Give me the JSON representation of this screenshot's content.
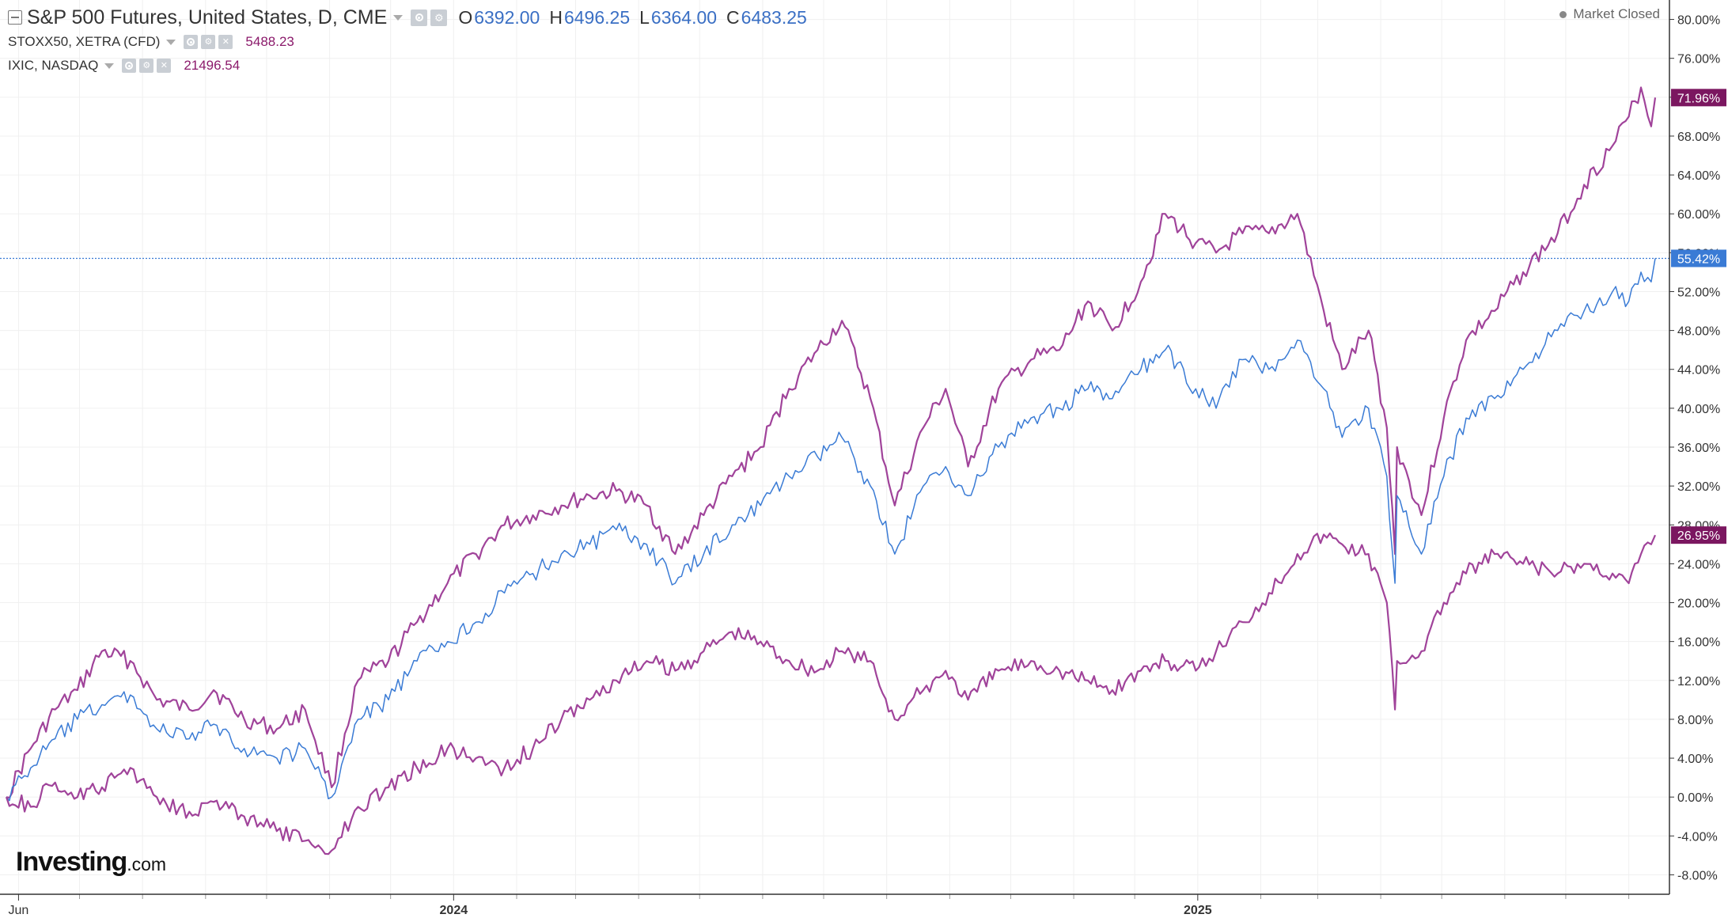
{
  "header": {
    "main_series": {
      "title": "S&P 500 Futures, United States, D, CME",
      "ohlc": [
        {
          "label": "O",
          "value": "6392.00"
        },
        {
          "label": "H",
          "value": "6496.25"
        },
        {
          "label": "L",
          "value": "6364.00"
        },
        {
          "label": "C",
          "value": "6483.25"
        }
      ]
    },
    "compare_series": [
      {
        "title": "STOXX50, XETRA (CFD)",
        "value": "5488.23"
      },
      {
        "title": "IXIC, NASDAQ",
        "value": "21496.54"
      }
    ],
    "market_status": "Market Closed",
    "icons": [
      "collapse-icon",
      "dropdown-arrow-icon",
      "eye-icon",
      "gear-icon",
      "close-icon"
    ]
  },
  "brand": {
    "name": "Investing",
    "suffix": ".com"
  },
  "colors": {
    "sp500": "#3a7bd5",
    "compare": "#a0439a",
    "compare_label_bg": "#7b1760",
    "sp500_label_bg": "#3a7bd5",
    "grid": "#f0f0f0",
    "axis": "#333333"
  },
  "chart_data": {
    "type": "line",
    "title": "S&P 500 Futures, United States, D, CME",
    "x_range": [
      "2023-05-26",
      "2025-08-14"
    ],
    "x_ticks": [
      {
        "date": "2023-06-01",
        "label": "Jun"
      },
      {
        "date": "2024-01-01",
        "label": "2024"
      },
      {
        "date": "2025-01-01",
        "label": "2025"
      }
    ],
    "x_minor_ticks": [
      "2023-07-01",
      "2023-08-01",
      "2023-09-01",
      "2023-10-01",
      "2023-11-01",
      "2023-12-01",
      "2024-02-01",
      "2024-03-01",
      "2024-04-01",
      "2024-05-01",
      "2024-06-01",
      "2024-07-01",
      "2024-08-01",
      "2024-09-01",
      "2024-10-01",
      "2024-11-01",
      "2024-12-01",
      "2025-02-01",
      "2025-03-01",
      "2025-04-01",
      "2025-05-01",
      "2025-06-01",
      "2025-07-01",
      "2025-08-01"
    ],
    "y_range": [
      -10,
      82
    ],
    "y_ticks": [
      "-8.00%",
      "-4.00%",
      "0.00%",
      "4.00%",
      "8.00%",
      "12.00%",
      "16.00%",
      "20.00%",
      "24.00%",
      "28.00%",
      "32.00%",
      "36.00%",
      "40.00%",
      "44.00%",
      "48.00%",
      "52.00%",
      "56.00%",
      "60.00%",
      "64.00%",
      "68.00%",
      "72.00%",
      "76.00%",
      "80.00%"
    ],
    "y_tick_values": [
      -8,
      -4,
      0,
      4,
      8,
      12,
      16,
      20,
      24,
      28,
      32,
      36,
      40,
      44,
      48,
      52,
      56,
      60,
      64,
      68,
      72,
      76,
      80
    ],
    "grid": true,
    "series": [
      {
        "name": "IXIC, NASDAQ",
        "color": "#a0439a",
        "last_label": "71.96%",
        "last_value": 71.96,
        "points": [
          [
            "2023-05-26",
            0
          ],
          [
            "2023-06-07",
            5
          ],
          [
            "2023-06-19",
            9
          ],
          [
            "2023-06-30",
            11
          ],
          [
            "2023-07-12",
            15
          ],
          [
            "2023-07-26",
            14
          ],
          [
            "2023-08-08",
            10
          ],
          [
            "2023-08-24",
            9
          ],
          [
            "2023-09-05",
            11
          ],
          [
            "2023-09-20",
            8
          ],
          [
            "2023-10-06",
            7
          ],
          [
            "2023-10-20",
            9
          ],
          [
            "2023-11-02",
            1
          ],
          [
            "2023-11-15",
            12
          ],
          [
            "2023-11-30",
            14
          ],
          [
            "2023-12-14",
            18
          ],
          [
            "2023-12-29",
            22
          ],
          [
            "2024-01-12",
            25
          ],
          [
            "2024-01-26",
            28
          ],
          [
            "2024-02-09",
            29
          ],
          [
            "2024-02-23",
            30
          ],
          [
            "2024-03-08",
            31
          ],
          [
            "2024-03-21",
            31.5
          ],
          [
            "2024-04-05",
            30
          ],
          [
            "2024-04-19",
            25
          ],
          [
            "2024-05-03",
            29
          ],
          [
            "2024-05-17",
            33
          ],
          [
            "2024-05-31",
            36
          ],
          [
            "2024-06-14",
            42
          ],
          [
            "2024-06-28",
            46
          ],
          [
            "2024-07-10",
            49
          ],
          [
            "2024-07-24",
            41
          ],
          [
            "2024-08-05",
            30
          ],
          [
            "2024-08-19",
            38
          ],
          [
            "2024-08-30",
            42
          ],
          [
            "2024-09-10",
            34
          ],
          [
            "2024-09-25",
            42
          ],
          [
            "2024-10-11",
            45
          ],
          [
            "2024-10-25",
            46
          ],
          [
            "2024-11-08",
            51
          ],
          [
            "2024-11-20",
            48
          ],
          [
            "2024-12-04",
            53
          ],
          [
            "2024-12-16",
            60
          ],
          [
            "2024-12-31",
            57
          ],
          [
            "2025-01-10",
            56
          ],
          [
            "2025-01-23",
            58
          ],
          [
            "2025-02-05",
            58
          ],
          [
            "2025-02-19",
            60
          ],
          [
            "2025-03-04",
            50
          ],
          [
            "2025-03-13",
            44
          ],
          [
            "2025-03-26",
            48
          ],
          [
            "2025-04-04",
            38
          ],
          [
            "2025-04-08",
            25
          ],
          [
            "2025-04-09",
            36
          ],
          [
            "2025-04-21",
            29
          ],
          [
            "2025-05-02",
            39
          ],
          [
            "2025-05-13",
            47
          ],
          [
            "2025-05-27",
            50
          ],
          [
            "2025-06-10",
            54
          ],
          [
            "2025-06-27",
            58
          ],
          [
            "2025-07-10",
            63
          ],
          [
            "2025-07-24",
            67
          ],
          [
            "2025-08-01",
            70
          ],
          [
            "2025-08-07",
            73
          ],
          [
            "2025-08-12",
            69
          ],
          [
            "2025-08-14",
            71.96
          ]
        ]
      },
      {
        "name": "S&P 500 Futures",
        "color": "#3a7bd5",
        "last_label": "55.42%",
        "last_value": 55.42,
        "points": [
          [
            "2023-05-26",
            0
          ],
          [
            "2023-06-07",
            3
          ],
          [
            "2023-06-19",
            6
          ],
          [
            "2023-06-30",
            8
          ],
          [
            "2023-07-12",
            9.5
          ],
          [
            "2023-07-26",
            10.5
          ],
          [
            "2023-08-08",
            7
          ],
          [
            "2023-08-24",
            6
          ],
          [
            "2023-09-05",
            7.5
          ],
          [
            "2023-09-20",
            5
          ],
          [
            "2023-10-06",
            4
          ],
          [
            "2023-10-20",
            5
          ],
          [
            "2023-11-02",
            0
          ],
          [
            "2023-11-15",
            8
          ],
          [
            "2023-11-30",
            10
          ],
          [
            "2023-12-14",
            14
          ],
          [
            "2023-12-29",
            16
          ],
          [
            "2024-01-12",
            18
          ],
          [
            "2024-01-26",
            21
          ],
          [
            "2024-02-09",
            23
          ],
          [
            "2024-02-23",
            25
          ],
          [
            "2024-03-08",
            26
          ],
          [
            "2024-03-21",
            27.5
          ],
          [
            "2024-04-05",
            26
          ],
          [
            "2024-04-19",
            22
          ],
          [
            "2024-05-03",
            25
          ],
          [
            "2024-05-17",
            28
          ],
          [
            "2024-05-31",
            30
          ],
          [
            "2024-06-14",
            33
          ],
          [
            "2024-06-28",
            35
          ],
          [
            "2024-07-10",
            37
          ],
          [
            "2024-07-24",
            32
          ],
          [
            "2024-08-05",
            25
          ],
          [
            "2024-08-19",
            32
          ],
          [
            "2024-08-30",
            34
          ],
          [
            "2024-09-10",
            31
          ],
          [
            "2024-09-25",
            36
          ],
          [
            "2024-10-11",
            39
          ],
          [
            "2024-10-25",
            40
          ],
          [
            "2024-11-08",
            42
          ],
          [
            "2024-11-20",
            41
          ],
          [
            "2024-12-04",
            44
          ],
          [
            "2024-12-16",
            46
          ],
          [
            "2024-12-31",
            42
          ],
          [
            "2025-01-10",
            40
          ],
          [
            "2025-01-23",
            45
          ],
          [
            "2025-02-05",
            44
          ],
          [
            "2025-02-19",
            47
          ],
          [
            "2025-03-04",
            42
          ],
          [
            "2025-03-13",
            37
          ],
          [
            "2025-03-26",
            40
          ],
          [
            "2025-04-04",
            33
          ],
          [
            "2025-04-08",
            22
          ],
          [
            "2025-04-09",
            31
          ],
          [
            "2025-04-21",
            25
          ],
          [
            "2025-05-02",
            33
          ],
          [
            "2025-05-13",
            39
          ],
          [
            "2025-05-27",
            41
          ],
          [
            "2025-06-10",
            44
          ],
          [
            "2025-06-27",
            48
          ],
          [
            "2025-07-10",
            50
          ],
          [
            "2025-07-24",
            52
          ],
          [
            "2025-08-01",
            51
          ],
          [
            "2025-08-07",
            54
          ],
          [
            "2025-08-12",
            53
          ],
          [
            "2025-08-14",
            55.42
          ]
        ]
      },
      {
        "name": "STOXX50, XETRA (CFD)",
        "color": "#a0439a",
        "last_label": "26.95%",
        "last_value": 26.95,
        "points": [
          [
            "2023-05-26",
            0
          ],
          [
            "2023-06-07",
            -1
          ],
          [
            "2023-06-19",
            1.5
          ],
          [
            "2023-06-30",
            0
          ],
          [
            "2023-07-12",
            1
          ],
          [
            "2023-07-26",
            3
          ],
          [
            "2023-08-08",
            0
          ],
          [
            "2023-08-24",
            -1.5
          ],
          [
            "2023-09-05",
            -0.5
          ],
          [
            "2023-09-20",
            -2
          ],
          [
            "2023-10-06",
            -3.5
          ],
          [
            "2023-10-20",
            -4.5
          ],
          [
            "2023-11-02",
            -5.5
          ],
          [
            "2023-11-15",
            -1
          ],
          [
            "2023-11-30",
            1
          ],
          [
            "2023-12-14",
            3
          ],
          [
            "2023-12-29",
            5
          ],
          [
            "2024-01-12",
            4
          ],
          [
            "2024-01-26",
            3
          ],
          [
            "2024-02-09",
            5
          ],
          [
            "2024-02-23",
            8
          ],
          [
            "2024-03-08",
            10
          ],
          [
            "2024-03-21",
            12
          ],
          [
            "2024-04-05",
            14
          ],
          [
            "2024-04-19",
            13
          ],
          [
            "2024-05-03",
            15
          ],
          [
            "2024-05-17",
            17
          ],
          [
            "2024-05-31",
            16
          ],
          [
            "2024-06-14",
            14
          ],
          [
            "2024-06-28",
            13
          ],
          [
            "2024-07-10",
            15
          ],
          [
            "2024-07-24",
            14
          ],
          [
            "2024-08-05",
            8
          ],
          [
            "2024-08-19",
            11
          ],
          [
            "2024-08-30",
            13
          ],
          [
            "2024-09-10",
            10
          ],
          [
            "2024-09-25",
            13
          ],
          [
            "2024-10-11",
            14
          ],
          [
            "2024-10-25",
            13
          ],
          [
            "2024-11-08",
            12
          ],
          [
            "2024-11-20",
            11
          ],
          [
            "2024-12-04",
            13
          ],
          [
            "2024-12-16",
            14
          ],
          [
            "2024-12-31",
            13
          ],
          [
            "2025-01-10",
            15
          ],
          [
            "2025-01-23",
            18
          ],
          [
            "2025-02-05",
            21
          ],
          [
            "2025-02-19",
            25
          ],
          [
            "2025-03-04",
            27
          ],
          [
            "2025-03-13",
            26
          ],
          [
            "2025-03-26",
            25
          ],
          [
            "2025-04-04",
            20
          ],
          [
            "2025-04-08",
            9
          ],
          [
            "2025-04-09",
            14
          ],
          [
            "2025-04-21",
            15
          ],
          [
            "2025-05-02",
            20
          ],
          [
            "2025-05-13",
            23
          ],
          [
            "2025-05-27",
            25
          ],
          [
            "2025-06-10",
            24
          ],
          [
            "2025-06-27",
            23
          ],
          [
            "2025-07-10",
            24
          ],
          [
            "2025-07-24",
            23
          ],
          [
            "2025-08-01",
            22
          ],
          [
            "2025-08-07",
            25
          ],
          [
            "2025-08-12",
            26
          ],
          [
            "2025-08-14",
            26.95
          ]
        ]
      }
    ],
    "reference_line": {
      "value": 55.42,
      "color": "#3a7bd5",
      "style": "dotted"
    }
  }
}
